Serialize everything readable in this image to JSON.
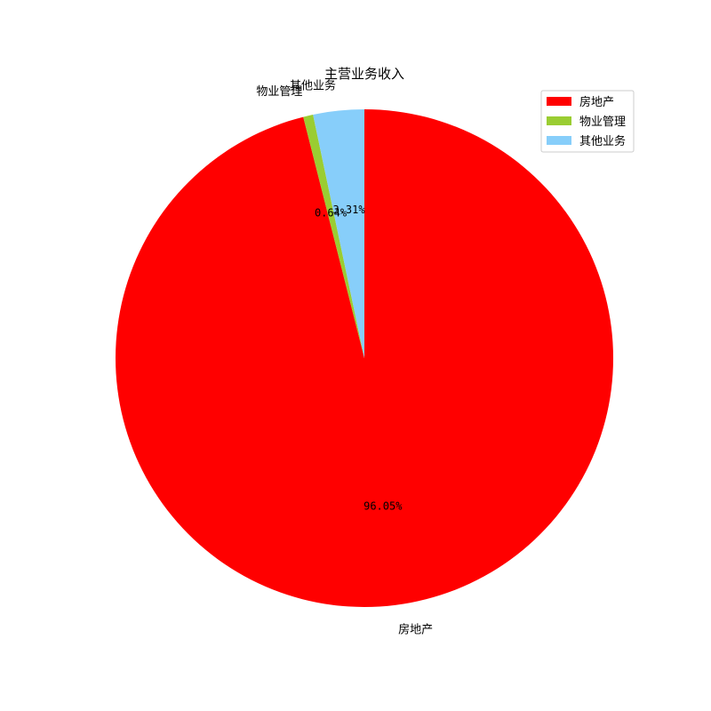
{
  "chart_data": {
    "type": "pie",
    "title": "主营业务收入",
    "start_angle_deg": 90,
    "direction": "clockwise",
    "legend_position": "top-right",
    "slices": [
      {
        "label": "房地产",
        "value": 96.05,
        "pct_label": "96.05%",
        "color": "#ff0000"
      },
      {
        "label": "物业管理",
        "value": 0.64,
        "pct_label": "0.64%",
        "color": "#9acd32"
      },
      {
        "label": "其他业务",
        "value": 3.31,
        "pct_label": "3.31%",
        "color": "#87cefa"
      }
    ],
    "legend": [
      {
        "label": "房地产",
        "color": "#ff0000"
      },
      {
        "label": "物业管理",
        "color": "#9acd32"
      },
      {
        "label": "其他业务",
        "color": "#87cefa"
      }
    ]
  }
}
